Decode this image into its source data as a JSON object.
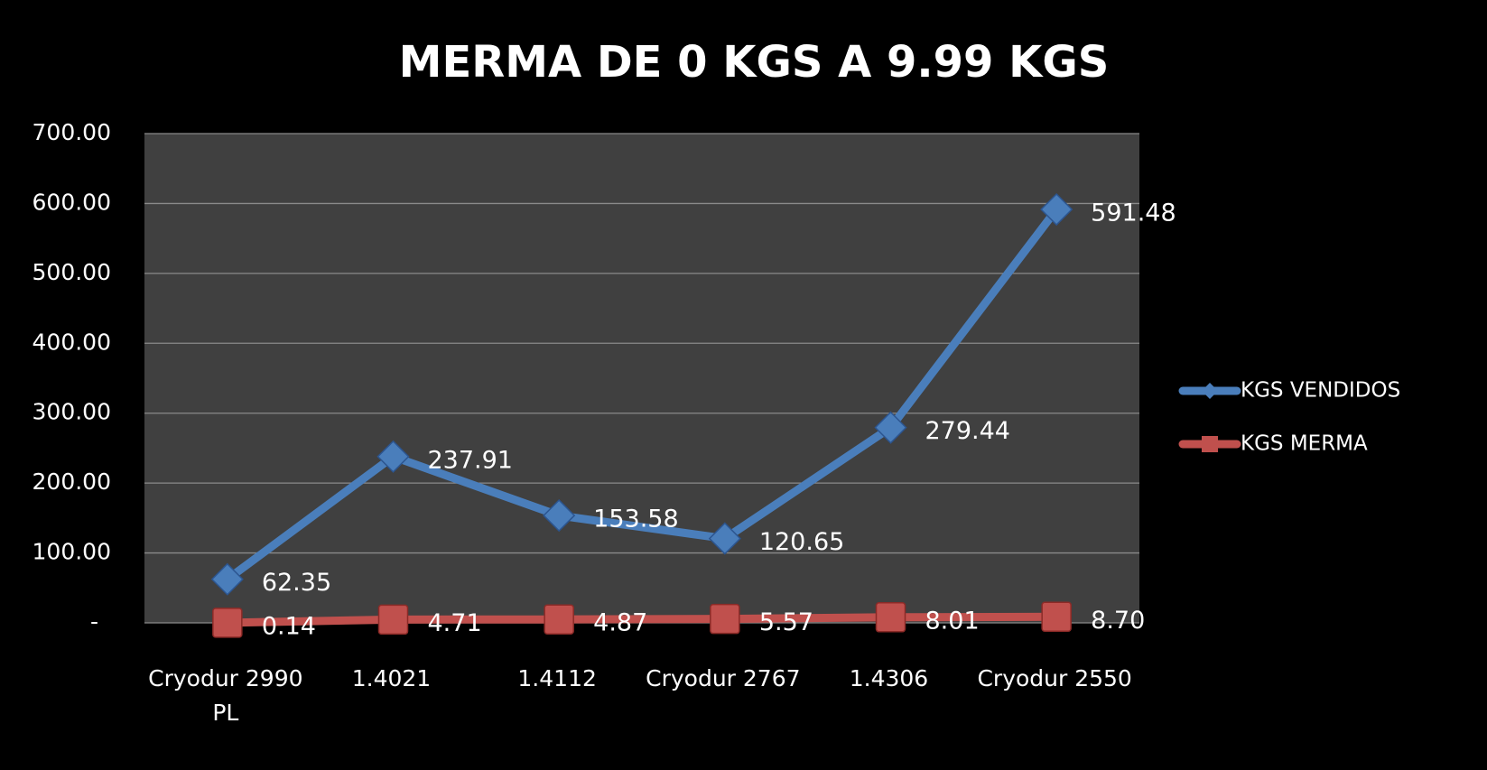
{
  "chart_data": {
    "type": "line",
    "title": "MERMA DE 0 KGS A 9.99 KGS",
    "categories": [
      "Cryodur 2990 PL",
      "1.4021",
      "1.4112",
      "Cryodur 2767",
      "1.4306",
      "Cryodur 2550"
    ],
    "series": [
      {
        "name": "KGS VENDIDOS",
        "color": "#4a7ebb",
        "marker": "diamond",
        "values": [
          62.35,
          237.91,
          153.58,
          120.65,
          279.44,
          591.48
        ],
        "value_labels": [
          "62.35",
          "237.91",
          "153.58",
          "120.65",
          "279.44",
          "591.48"
        ]
      },
      {
        "name": "KGS MERMA",
        "color": "#c0504d",
        "marker": "square",
        "values": [
          0.14,
          4.71,
          4.87,
          5.57,
          8.01,
          8.7
        ],
        "value_labels": [
          "0.14",
          "4.71",
          "4.87",
          "5.57",
          "8.01",
          "8.70"
        ]
      }
    ],
    "ylim": [
      0,
      700
    ],
    "yticks": [
      {
        "value": 0,
        "label": "-"
      },
      {
        "value": 100,
        "label": "100.00"
      },
      {
        "value": 200,
        "label": "200.00"
      },
      {
        "value": 300,
        "label": "300.00"
      },
      {
        "value": 400,
        "label": "400.00"
      },
      {
        "value": 500,
        "label": "500.00"
      },
      {
        "value": 600,
        "label": "600.00"
      },
      {
        "value": 700,
        "label": "700.00"
      }
    ],
    "grid": true,
    "legend": "right"
  }
}
